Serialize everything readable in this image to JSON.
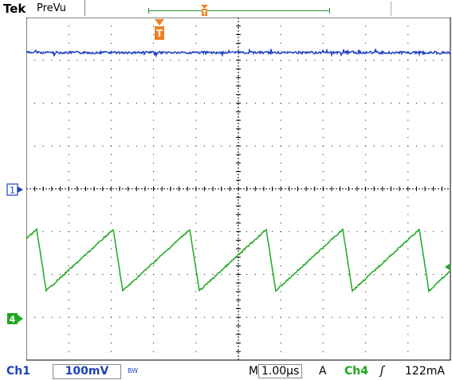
{
  "header": {
    "brand": "Tek",
    "mode": "PreVu"
  },
  "trigger": {
    "marker_label": "T",
    "color": "#f07f20"
  },
  "channels": {
    "ch1": {
      "marker_label": "1",
      "color": "#1f3fbf"
    },
    "ch4": {
      "marker_label": "4",
      "color": "#1fa81f"
    }
  },
  "status": {
    "ch1_label": "Ch1",
    "ch1_scale": "100mV",
    "bandwidth_limit": "BW",
    "timebase_label": "M",
    "timebase_value": "1.00µs",
    "acq_mode": "A",
    "trigger_source": "Ch4",
    "trigger_slope": "ʃ",
    "trigger_level": "122mA"
  },
  "display": {
    "divisions_x": 10,
    "divisions_y": 8,
    "grid_color": "#000000"
  }
}
